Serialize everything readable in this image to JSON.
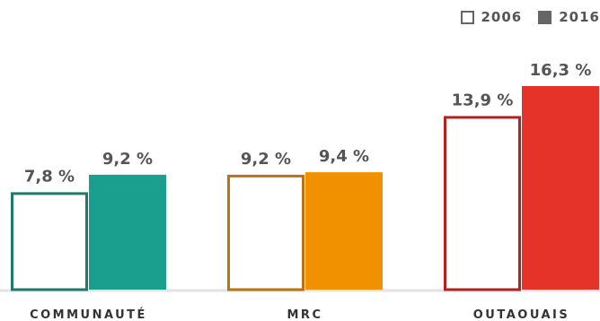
{
  "legend": {
    "series_2006": "2006",
    "series_2016": "2016"
  },
  "chart_data": {
    "type": "bar",
    "categories": [
      "COMMUNAUTÉ",
      "MRC",
      "OUTAOUAIS"
    ],
    "series": [
      {
        "name": "2006",
        "values": [
          7.8,
          9.2,
          13.9
        ],
        "labels": [
          "7,8 %",
          "9,2 %",
          "13,9 %"
        ],
        "style": "outline"
      },
      {
        "name": "2016",
        "values": [
          9.2,
          9.4,
          16.3
        ],
        "labels": [
          "9,2 %",
          "9,4 %",
          "16,3 %"
        ],
        "style": "filled"
      }
    ],
    "category_colors": [
      "#1a9e8e",
      "#f29100",
      "#e5332a"
    ],
    "outline_colors": [
      "#1f7a6e",
      "#b87312",
      "#b4211f"
    ],
    "ylim": [
      0,
      16.3
    ],
    "legend_position": "top-right",
    "grid": false
  }
}
